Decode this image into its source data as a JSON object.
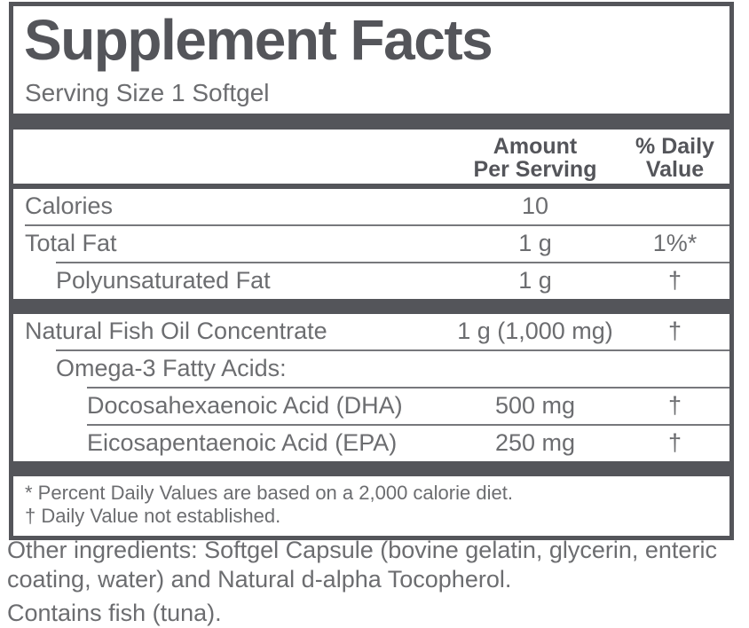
{
  "colors": {
    "dark": "#54555a",
    "text": "#6c6d70",
    "rule": "#77787c"
  },
  "panel": {
    "title": "Supplement Facts",
    "serving_size": "Serving Size 1 Softgel",
    "columns": {
      "amount": "Amount\nPer Serving",
      "daily_value": "% Daily\nValue"
    },
    "rows": [
      {
        "name": "Calories",
        "amount": "10",
        "daily_value": ""
      },
      {
        "name": "Total Fat",
        "amount": "1 g",
        "daily_value": "1%*"
      },
      {
        "name": "Polyunsaturated Fat",
        "amount": "1 g",
        "daily_value": "†"
      },
      {
        "name": "Natural Fish Oil Concentrate",
        "amount": "1 g (1,000 mg)",
        "daily_value": "†"
      },
      {
        "name": "Omega-3 Fatty Acids:",
        "amount": "",
        "daily_value": ""
      },
      {
        "name": "Docosahexaenoic Acid (DHA)",
        "amount": "500 mg",
        "daily_value": "†"
      },
      {
        "name": "Eicosapentaenoic Acid (EPA)",
        "amount": "250 mg",
        "daily_value": "†"
      }
    ],
    "footnotes": [
      "* Percent Daily Values are based on a 2,000 calorie diet.",
      "† Daily Value not established."
    ]
  },
  "other_ingredients": "Other ingredients: Softgel Capsule (bovine gelatin, glycerin, enteric coating, water) and Natural d-alpha Tocopherol.",
  "allergen": "Contains fish (tuna)."
}
